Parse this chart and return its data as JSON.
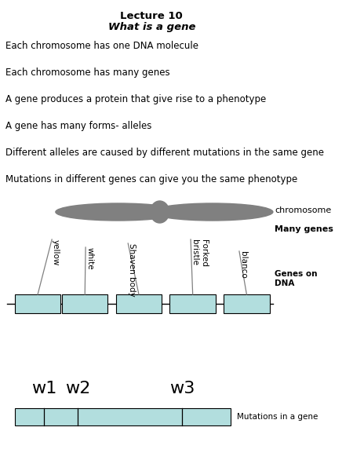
{
  "title_line1": "Lecture 10",
  "title_line2": "What is a gene",
  "bullet_points": [
    "Each chromosome has one DNA molecule",
    "Each chromosome has many genes",
    "A gene produces a protein that give rise to a phenotype",
    "A gene has many forms- alleles",
    "Different alleles are caused by different mutations in the same gene",
    "Mutations in different genes can give you the same phenotype"
  ],
  "gene_labels": [
    "yellow",
    "white",
    "Shaven body",
    "Forked\nbristle",
    "blanco"
  ],
  "gene_box_color": "#b2dede",
  "chromosome_color": "#808080",
  "label_right_chromosome": "chromosome",
  "label_right_manygenes": "Many genes",
  "label_right_genesdna": "Genes on\nDNA",
  "w_labels": [
    "w1",
    "w2",
    "w3"
  ],
  "mut_label": "Mutations in a gene",
  "bg_color": "#ffffff"
}
